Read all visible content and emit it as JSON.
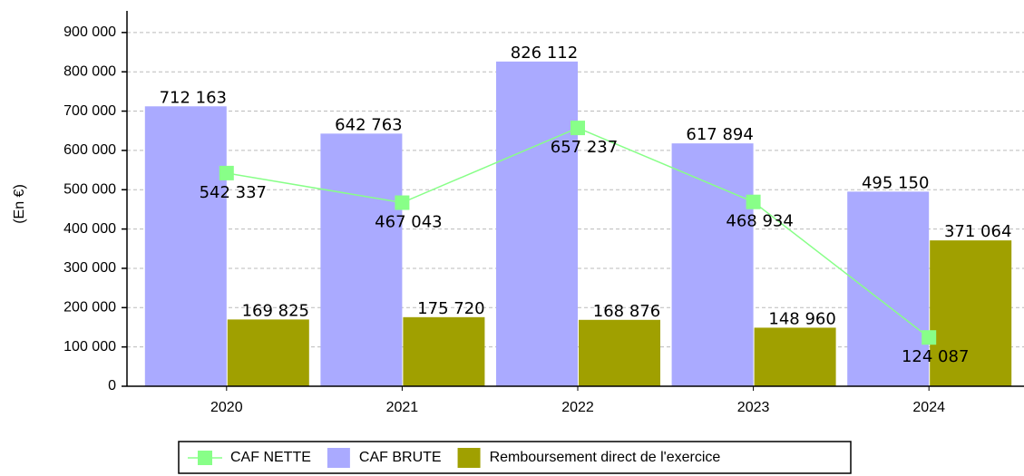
{
  "chart_data": {
    "type": "bar",
    "y_label": "(En €)",
    "categories": [
      "2020",
      "2021",
      "2022",
      "2023",
      "2024"
    ],
    "series": [
      {
        "name": "CAF NETTE",
        "type": "line",
        "color": "#88ff88",
        "values": [
          542337,
          467043,
          657237,
          468934,
          124087
        ],
        "value_labels": [
          "542 337",
          "467 043",
          "657 237",
          "468 934",
          "124 087"
        ]
      },
      {
        "name": "CAF BRUTE",
        "type": "bar",
        "color": "#aaaaff",
        "values": [
          712163,
          642763,
          826112,
          617894,
          495150
        ],
        "value_labels": [
          "712 163",
          "642 763",
          "826 112",
          "617 894",
          "495 150"
        ]
      },
      {
        "name": "Remboursement direct de l'exercice",
        "type": "bar",
        "color": "#a0a000",
        "values": [
          169825,
          175720,
          168876,
          148960,
          371064
        ],
        "value_labels": [
          "169 825",
          "175 720",
          "168 876",
          "148 960",
          "371 064"
        ]
      }
    ],
    "ylim": [
      0,
      955000
    ],
    "yticks": [
      0,
      {
        "value": 100000,
        "label": "100 000"
      },
      {
        "value": 200000,
        "label": "200 000"
      },
      {
        "value": 300000,
        "label": "300 000"
      },
      {
        "value": 400000,
        "label": "400 000"
      },
      {
        "value": 500000,
        "label": "500 000"
      },
      {
        "value": 600000,
        "label": "600 000"
      },
      {
        "value": 700000,
        "label": "700 000"
      },
      {
        "value": 800000,
        "label": "800 000"
      },
      {
        "value": 900000,
        "label": "900 000"
      }
    ],
    "grid": true
  }
}
